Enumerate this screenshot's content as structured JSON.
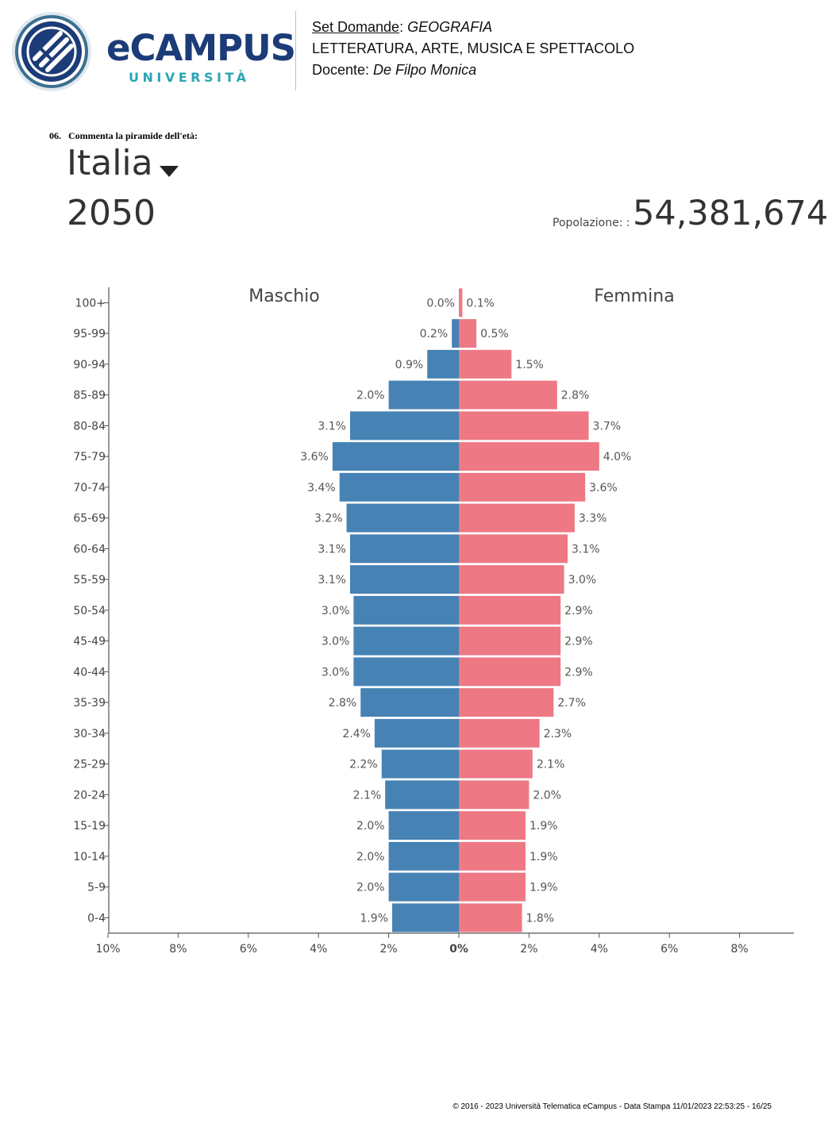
{
  "header": {
    "logo": {
      "name": "eCAMPUS",
      "subtitle": "UNIVERSITÀ",
      "icon": "ecampus-emblem-icon"
    },
    "set_label": "Set Domande",
    "set_sep": ": ",
    "set_value": "GEOGRAFIA",
    "subject": "LETTERATURA, ARTE, MUSICA E SPETTACOLO",
    "docente_label": "Docente: ",
    "docente_value": "De Filpo Monica"
  },
  "question": "06.   Commenta la piramide dell'età:",
  "figure": {
    "country": "Italia",
    "year": "2050",
    "population_label": "Popolazione: :",
    "population_value": "54,381,674"
  },
  "chart_data": {
    "type": "bar",
    "orientation": "horizontal",
    "categories": [
      "100+",
      "95-99",
      "90-94",
      "85-89",
      "80-84",
      "75-79",
      "70-74",
      "65-69",
      "60-64",
      "55-59",
      "50-54",
      "45-49",
      "40-44",
      "35-39",
      "30-34",
      "25-29",
      "20-24",
      "15-19",
      "10-14",
      "5-9",
      "0-4"
    ],
    "series": [
      {
        "name": "Maschio",
        "color": "#4682b4",
        "values": [
          0.0,
          0.2,
          0.9,
          2.0,
          3.1,
          3.6,
          3.4,
          3.2,
          3.1,
          3.1,
          3.0,
          3.0,
          3.0,
          2.8,
          2.4,
          2.2,
          2.1,
          2.0,
          2.0,
          2.0,
          1.9
        ],
        "labels": [
          "0.0%",
          "0.2%",
          "0.9%",
          "2.0%",
          "3.1%",
          "3.6%",
          "3.4%",
          "3.2%",
          "3.1%",
          "3.1%",
          "3.0%",
          "3.0%",
          "3.0%",
          "2.8%",
          "2.4%",
          "2.2%",
          "2.1%",
          "2.0%",
          "2.0%",
          "2.0%",
          "1.9%"
        ]
      },
      {
        "name": "Femmina",
        "color": "#ee7884",
        "values": [
          0.1,
          0.5,
          1.5,
          2.8,
          3.7,
          4.0,
          3.6,
          3.3,
          3.1,
          3.0,
          2.9,
          2.9,
          2.9,
          2.7,
          2.3,
          2.1,
          2.0,
          1.9,
          1.9,
          1.9,
          1.8
        ],
        "labels": [
          "0.1%",
          "0.5%",
          "1.5%",
          "2.8%",
          "3.7%",
          "4.0%",
          "3.6%",
          "3.3%",
          "3.1%",
          "3.0%",
          "2.9%",
          "2.9%",
          "2.9%",
          "2.7%",
          "2.3%",
          "2.1%",
          "2.0%",
          "1.9%",
          "1.9%",
          "1.9%",
          "1.8%"
        ]
      }
    ],
    "xlim": [
      -10,
      10
    ],
    "x_ticks": [
      -10,
      -8,
      -6,
      -4,
      -2,
      0,
      2,
      4,
      6,
      8
    ],
    "x_tick_labels": [
      "10%",
      "8%",
      "6%",
      "4%",
      "2%",
      "0%",
      "2%",
      "4%",
      "6%",
      "8%"
    ],
    "grid": false
  },
  "footer": "© 2016 - 2023 Università Telematica eCampus - Data Stampa 11/01/2023 22:53:25 - 16/25"
}
